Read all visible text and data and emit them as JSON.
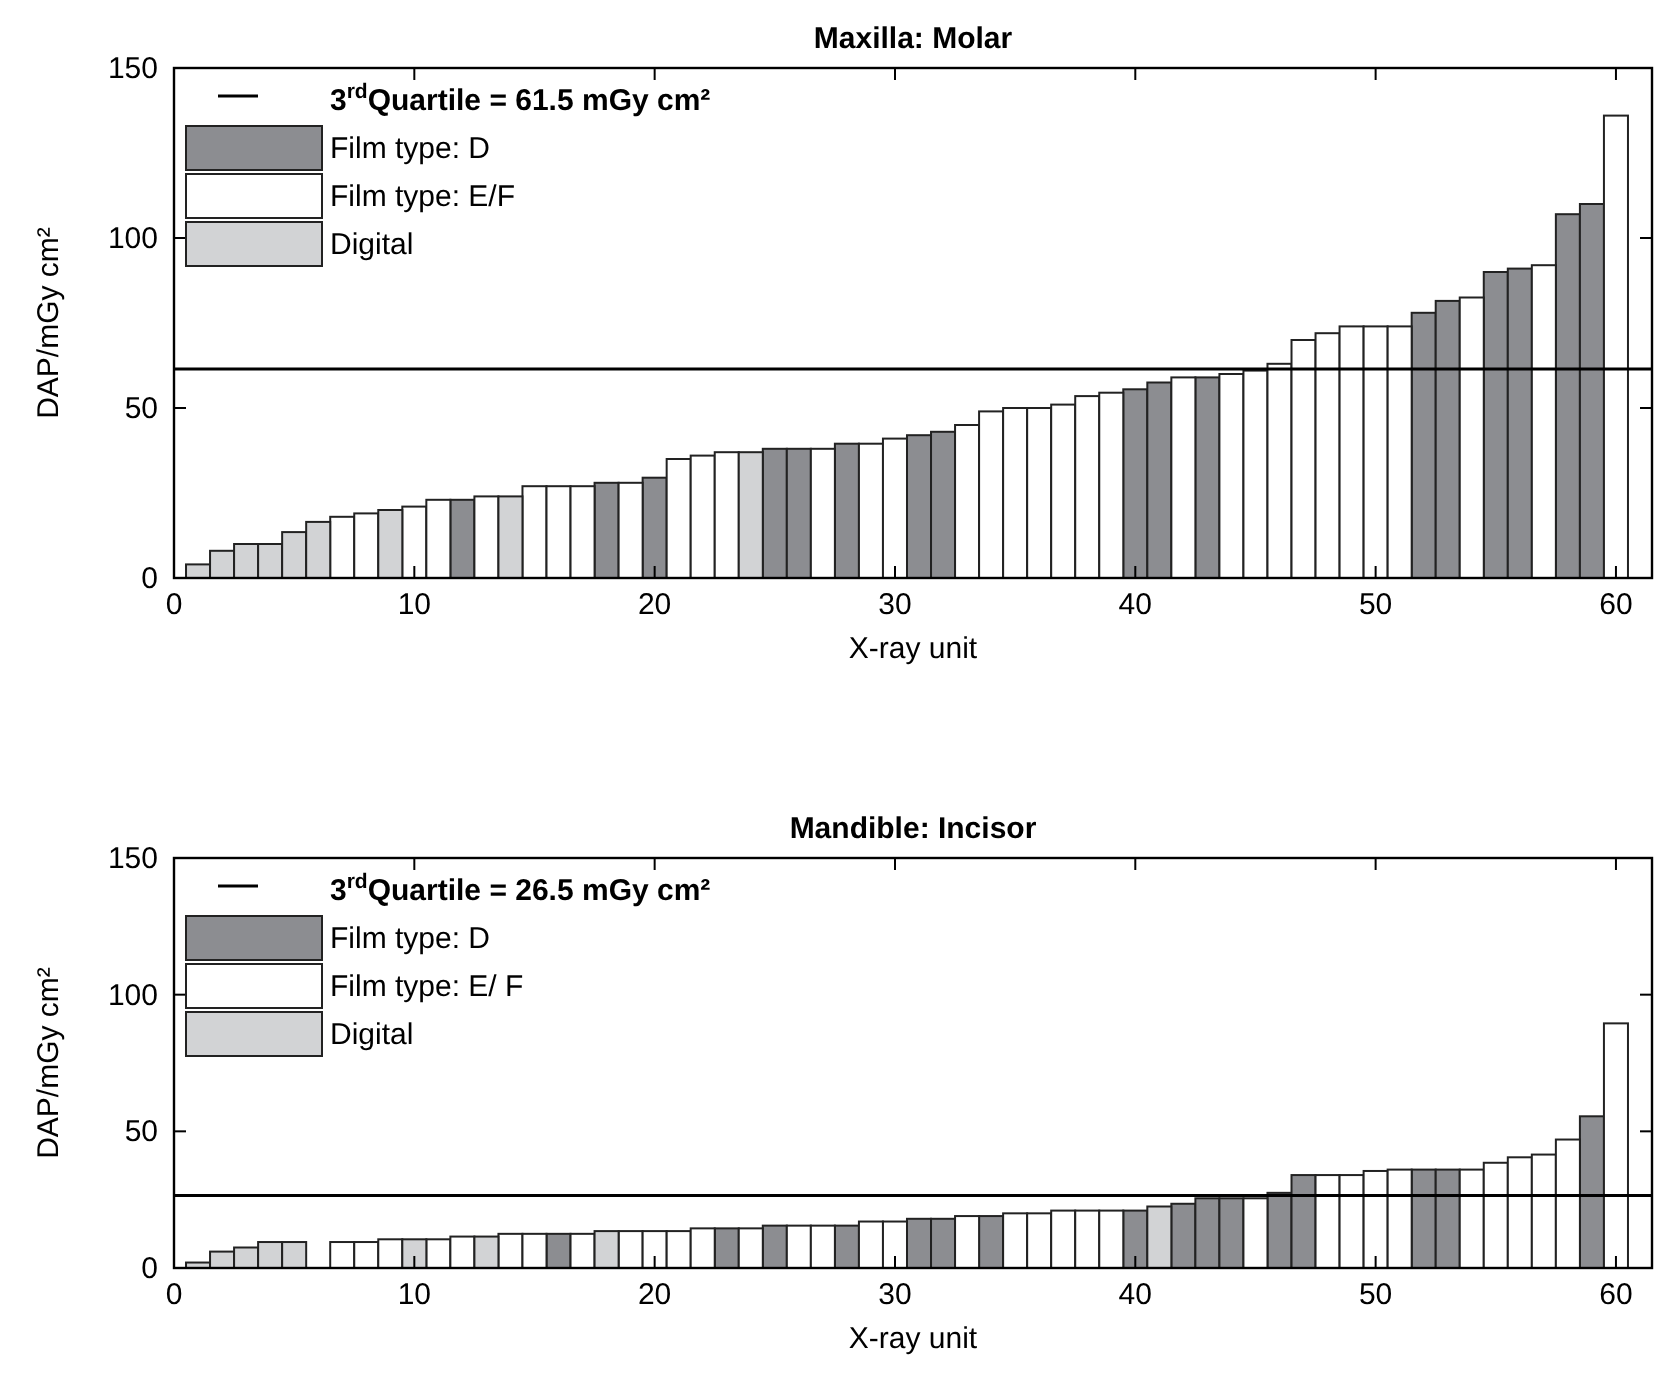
{
  "chart_data": [
    {
      "type": "bar",
      "title": "Maxilla: Molar",
      "xlabel": "X-ray unit",
      "ylabel": "DAP/mGy cm²",
      "legend": "top left",
      "grid": false,
      "x": [
        1,
        2,
        3,
        4,
        5,
        6,
        7,
        8,
        9,
        10,
        11,
        12,
        13,
        14,
        15,
        16,
        17,
        18,
        19,
        20,
        21,
        22,
        23,
        24,
        25,
        26,
        27,
        28,
        29,
        30,
        31,
        32,
        33,
        34,
        35,
        36,
        37,
        38,
        39,
        40,
        41,
        42,
        43,
        44,
        45,
        46,
        47,
        48,
        49,
        50,
        51,
        52,
        53,
        54,
        55,
        56,
        57,
        58,
        59,
        60
      ],
      "xlim": [
        0,
        61.5
      ],
      "xticks": [
        0,
        10,
        20,
        30,
        40,
        50,
        60
      ],
      "ylim": [
        0,
        150
      ],
      "yticks": [
        0,
        50,
        100,
        150
      ],
      "ref_lines": [
        {
          "axis": "y",
          "value": 61.5,
          "label": "3$^{rd}$Quartile = 61.5 mGy cm²",
          "color": "#000000"
        }
      ],
      "series": [
        {
          "name": "Film type: D",
          "color": "#8c8d91",
          "values": [
            null,
            null,
            null,
            null,
            null,
            null,
            null,
            null,
            null,
            null,
            null,
            23,
            null,
            null,
            null,
            null,
            null,
            28,
            null,
            29.5,
            null,
            null,
            null,
            null,
            38,
            38,
            null,
            39.5,
            null,
            null,
            42,
            43,
            null,
            null,
            null,
            null,
            null,
            null,
            null,
            55.5,
            57.5,
            null,
            59,
            null,
            null,
            null,
            null,
            null,
            null,
            null,
            null,
            78,
            81.5,
            null,
            90,
            91,
            null,
            107,
            110,
            null
          ]
        },
        {
          "name": "Film type: E/F",
          "color": "#ffffff",
          "values": [
            null,
            null,
            null,
            null,
            null,
            null,
            18,
            19,
            null,
            21,
            23,
            null,
            24,
            null,
            27,
            27,
            27,
            null,
            28,
            null,
            35,
            36,
            37,
            null,
            null,
            null,
            38,
            null,
            39.5,
            41,
            null,
            null,
            45,
            49,
            50,
            50,
            51,
            53.5,
            54.5,
            null,
            null,
            59,
            null,
            60,
            61,
            63,
            70,
            72,
            74,
            74,
            74,
            null,
            null,
            82.5,
            null,
            null,
            92,
            null,
            null,
            136
          ]
        },
        {
          "name": "Digital",
          "color": "#d2d3d5",
          "values": [
            4,
            8,
            10,
            10,
            13.5,
            16.5,
            null,
            null,
            20,
            null,
            null,
            null,
            null,
            24,
            null,
            null,
            null,
            null,
            null,
            null,
            null,
            null,
            null,
            37,
            null,
            null,
            null,
            null,
            null,
            null,
            null,
            null,
            null,
            null,
            null,
            null,
            null,
            null,
            null,
            null,
            null,
            null,
            null,
            null,
            null,
            null,
            null,
            null,
            null,
            null,
            null,
            null,
            null,
            null,
            null,
            null,
            null,
            null,
            null,
            null
          ]
        }
      ]
    },
    {
      "type": "bar",
      "title": "Mandible: Incisor",
      "xlabel": "X-ray unit",
      "ylabel": "DAP/mGy cm²",
      "legend": "top left",
      "grid": false,
      "x": [
        1,
        2,
        3,
        4,
        5,
        7,
        8,
        9,
        10,
        11,
        12,
        13,
        14,
        15,
        16,
        17,
        18,
        19,
        20,
        21,
        22,
        23,
        24,
        25,
        26,
        27,
        28,
        29,
        30,
        31,
        32,
        33,
        34,
        35,
        36,
        37,
        38,
        39,
        40,
        41,
        42,
        43,
        44,
        45,
        46,
        47,
        48,
        49,
        50,
        51,
        52,
        53,
        54,
        55,
        56,
        57,
        58,
        59,
        60
      ],
      "xlim": [
        0,
        61.5
      ],
      "xticks": [
        0,
        10,
        20,
        30,
        40,
        50,
        60
      ],
      "ylim": [
        0,
        150
      ],
      "yticks": [
        0,
        50,
        100,
        150
      ],
      "ref_lines": [
        {
          "axis": "y",
          "value": 26.5,
          "label": "3$^{rd}$Quartile = 26.5 mGy cm²",
          "color": "#000000"
        }
      ],
      "series": [
        {
          "name": "Film type: D",
          "color": "#8c8d91",
          "values": [
            null,
            null,
            null,
            null,
            null,
            null,
            null,
            null,
            null,
            null,
            null,
            null,
            null,
            null,
            12.5,
            null,
            null,
            null,
            null,
            null,
            null,
            14.5,
            null,
            15.5,
            null,
            null,
            15.5,
            null,
            null,
            18,
            18,
            null,
            19,
            null,
            null,
            null,
            null,
            null,
            21,
            null,
            23.5,
            25.5,
            25.5,
            null,
            27.5,
            34,
            null,
            null,
            null,
            null,
            36,
            36,
            null,
            null,
            null,
            null,
            null,
            55.5,
            null
          ]
        },
        {
          "name": "Film type: E/ F",
          "color": "#ffffff",
          "values": [
            null,
            null,
            null,
            null,
            null,
            9.5,
            9.5,
            10.5,
            null,
            10.5,
            11.5,
            null,
            12.5,
            12.5,
            null,
            12.5,
            null,
            13.5,
            13.5,
            13.5,
            14.5,
            null,
            14.5,
            null,
            15.5,
            15.5,
            null,
            17,
            17,
            null,
            null,
            19,
            null,
            20,
            20,
            21,
            21,
            21,
            null,
            null,
            null,
            null,
            null,
            25.5,
            null,
            null,
            34,
            34,
            35.5,
            36,
            null,
            null,
            36,
            38.5,
            40.5,
            41.5,
            47,
            null,
            89.5
          ]
        },
        {
          "name": "Digital",
          "color": "#d2d3d5",
          "values": [
            2,
            6,
            7.5,
            9.5,
            9.5,
            null,
            null,
            null,
            10.5,
            null,
            null,
            11.5,
            null,
            null,
            null,
            null,
            13.5,
            null,
            null,
            null,
            null,
            null,
            null,
            null,
            null,
            null,
            null,
            null,
            null,
            null,
            null,
            null,
            null,
            null,
            null,
            null,
            null,
            null,
            null,
            22.5,
            null,
            null,
            null,
            null,
            null,
            null,
            null,
            null,
            null,
            null,
            null,
            null,
            null,
            null,
            null,
            null,
            null,
            null,
            null
          ]
        }
      ]
    }
  ]
}
